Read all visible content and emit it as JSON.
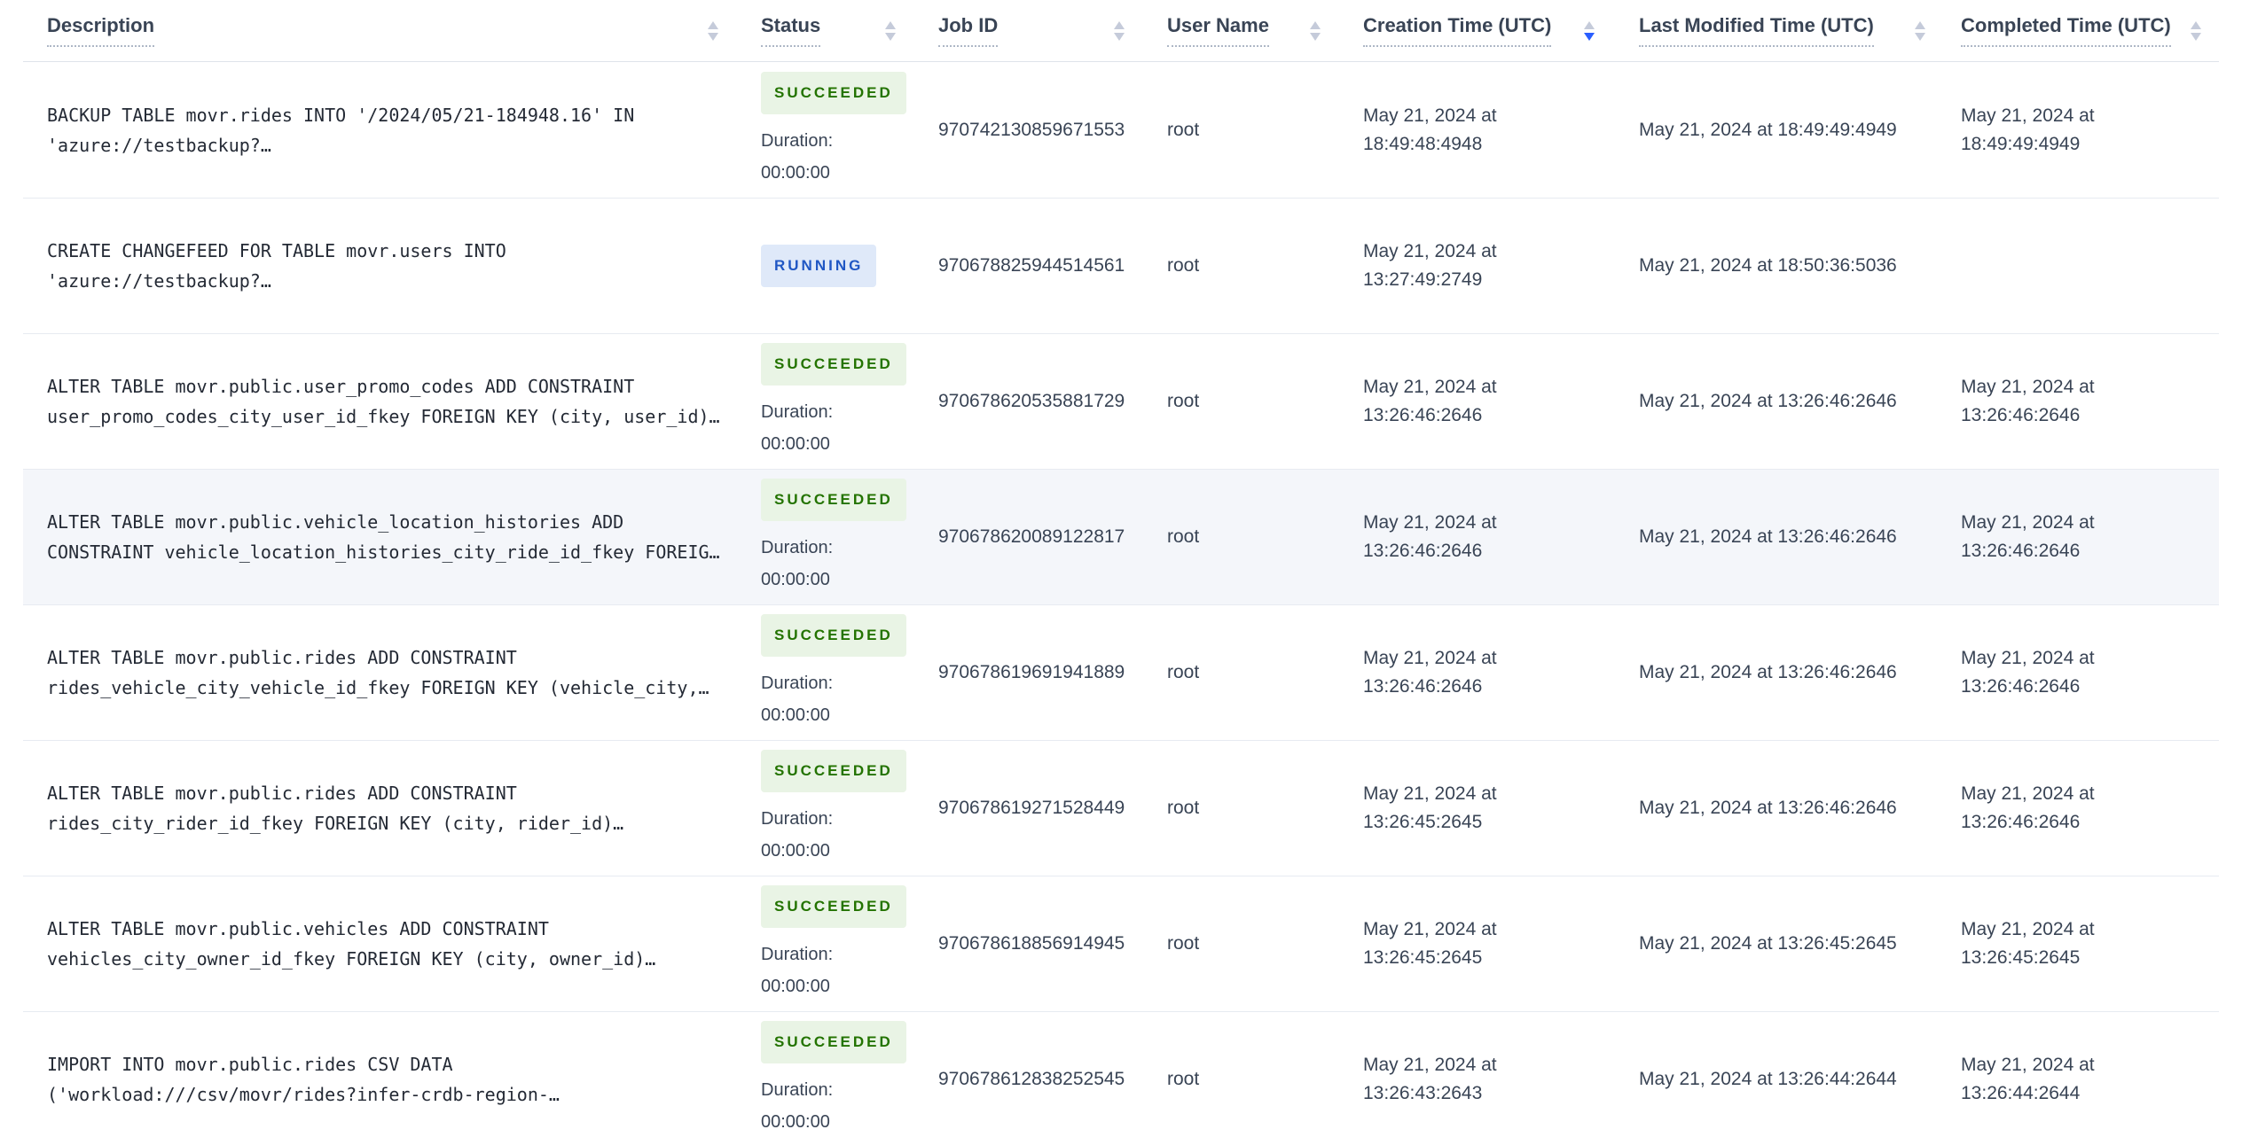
{
  "labels": {
    "duration": "Duration:"
  },
  "colors": {
    "succeeded_badge_bg": "#e9f4e5",
    "succeeded_badge_text": "#237300",
    "running_badge_bg": "#dfe9f9",
    "running_badge_text": "#2057c4",
    "sort_active": "#2a5eff",
    "sort_inactive": "#c5cbda",
    "row_highlight": "#f4f6fa"
  },
  "table": {
    "columns": [
      {
        "id": "desc",
        "label": "Description",
        "sort": "none"
      },
      {
        "id": "status",
        "label": "Status",
        "sort": "none"
      },
      {
        "id": "jobid",
        "label": "Job ID",
        "sort": "none"
      },
      {
        "id": "user",
        "label": "User Name",
        "sort": "none"
      },
      {
        "id": "created",
        "label": "Creation Time (UTC)",
        "sort": "desc"
      },
      {
        "id": "modified",
        "label": "Last Modified Time (UTC)",
        "sort": "none"
      },
      {
        "id": "completed",
        "label": "Completed Time (UTC)",
        "sort": "none"
      }
    ],
    "rows": [
      {
        "description": "BACKUP TABLE movr.rides INTO '/2024/05/21-184948.16' IN 'azure://testbackup?…",
        "status": "SUCCEEDED",
        "duration": "00:00:00",
        "job_id": "970742130859671553",
        "user_name": "root",
        "creation_time": "May 21, 2024 at 18:49:48:4948",
        "last_modified_time": "May 21, 2024 at 18:49:49:4949",
        "completed_time": "May 21, 2024 at 18:49:49:4949",
        "highlighted": false
      },
      {
        "description": "CREATE CHANGEFEED FOR TABLE movr.users INTO 'azure://testbackup?…",
        "status": "RUNNING",
        "duration": null,
        "job_id": "970678825944514561",
        "user_name": "root",
        "creation_time": "May 21, 2024 at 13:27:49:2749",
        "last_modified_time": "May 21, 2024 at 18:50:36:5036",
        "completed_time": "",
        "highlighted": false
      },
      {
        "description": "ALTER TABLE movr.public.user_promo_codes ADD CONSTRAINT user_promo_codes_city_user_id_fkey FOREIGN KEY (city, user_id)…",
        "status": "SUCCEEDED",
        "duration": "00:00:00",
        "job_id": "970678620535881729",
        "user_name": "root",
        "creation_time": "May 21, 2024 at 13:26:46:2646",
        "last_modified_time": "May 21, 2024 at 13:26:46:2646",
        "completed_time": "May 21, 2024 at 13:26:46:2646",
        "highlighted": false
      },
      {
        "description": "ALTER TABLE movr.public.vehicle_location_histories ADD CONSTRAINT vehicle_location_histories_city_ride_id_fkey FOREIG…",
        "status": "SUCCEEDED",
        "duration": "00:00:00",
        "job_id": "970678620089122817",
        "user_name": "root",
        "creation_time": "May 21, 2024 at 13:26:46:2646",
        "last_modified_time": "May 21, 2024 at 13:26:46:2646",
        "completed_time": "May 21, 2024 at 13:26:46:2646",
        "highlighted": true
      },
      {
        "description": "ALTER TABLE movr.public.rides ADD CONSTRAINT rides_vehicle_city_vehicle_id_fkey FOREIGN KEY (vehicle_city,…",
        "status": "SUCCEEDED",
        "duration": "00:00:00",
        "job_id": "970678619691941889",
        "user_name": "root",
        "creation_time": "May 21, 2024 at 13:26:46:2646",
        "last_modified_time": "May 21, 2024 at 13:26:46:2646",
        "completed_time": "May 21, 2024 at 13:26:46:2646",
        "highlighted": false
      },
      {
        "description": "ALTER TABLE movr.public.rides ADD CONSTRAINT rides_city_rider_id_fkey FOREIGN KEY (city, rider_id)…",
        "status": "SUCCEEDED",
        "duration": "00:00:00",
        "job_id": "970678619271528449",
        "user_name": "root",
        "creation_time": "May 21, 2024 at 13:26:45:2645",
        "last_modified_time": "May 21, 2024 at 13:26:46:2646",
        "completed_time": "May 21, 2024 at 13:26:46:2646",
        "highlighted": false
      },
      {
        "description": "ALTER TABLE movr.public.vehicles ADD CONSTRAINT vehicles_city_owner_id_fkey FOREIGN KEY (city, owner_id)…",
        "status": "SUCCEEDED",
        "duration": "00:00:00",
        "job_id": "970678618856914945",
        "user_name": "root",
        "creation_time": "May 21, 2024 at 13:26:45:2645",
        "last_modified_time": "May 21, 2024 at 13:26:45:2645",
        "completed_time": "May 21, 2024 at 13:26:45:2645",
        "highlighted": false
      },
      {
        "description": "IMPORT INTO movr.public.rides CSV DATA ('workload:///csv/movr/rides?infer-crdb-region-…",
        "status": "SUCCEEDED",
        "duration": "00:00:00",
        "job_id": "970678612838252545",
        "user_name": "root",
        "creation_time": "May 21, 2024 at 13:26:43:2643",
        "last_modified_time": "May 21, 2024 at 13:26:44:2644",
        "completed_time": "May 21, 2024 at 13:26:44:2644",
        "highlighted": false
      }
    ]
  }
}
